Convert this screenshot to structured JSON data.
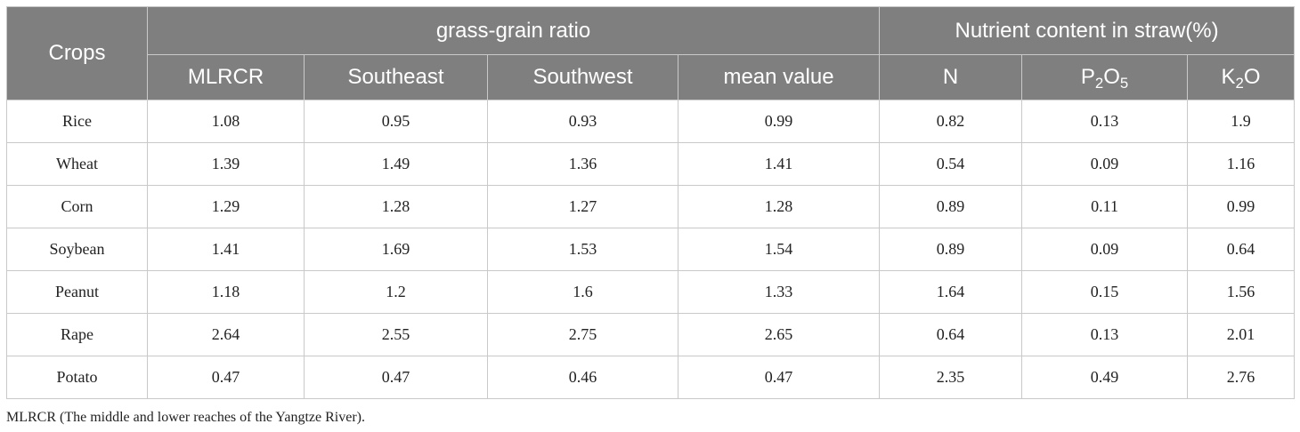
{
  "header": {
    "crops": "Crops",
    "group_ratio": "grass-grain ratio",
    "group_nutrient": "Nutrient content in straw(%)",
    "cols": [
      "MLRCR",
      "Southeast",
      "Southwest",
      "mean value",
      "N"
    ],
    "p2o5": {
      "a": "P",
      "a_sub": "2",
      "b": "O",
      "b_sub": "5"
    },
    "k2o": {
      "a": "K",
      "a_sub": "2",
      "b": "O"
    }
  },
  "rows": [
    [
      "Rice",
      "1.08",
      "0.95",
      "0.93",
      "0.99",
      "0.82",
      "0.13",
      "1.9"
    ],
    [
      "Wheat",
      "1.39",
      "1.49",
      "1.36",
      "1.41",
      "0.54",
      "0.09",
      "1.16"
    ],
    [
      "Corn",
      "1.29",
      "1.28",
      "1.27",
      "1.28",
      "0.89",
      "0.11",
      "0.99"
    ],
    [
      "Soybean",
      "1.41",
      "1.69",
      "1.53",
      "1.54",
      "0.89",
      "0.09",
      "0.64"
    ],
    [
      "Peanut",
      "1.18",
      "1.2",
      "1.6",
      "1.33",
      "1.64",
      "0.15",
      "1.56"
    ],
    [
      "Rape",
      "2.64",
      "2.55",
      "2.75",
      "2.65",
      "0.64",
      "0.13",
      "2.01"
    ],
    [
      "Potato",
      "0.47",
      "0.47",
      "0.46",
      "0.47",
      "2.35",
      "0.49",
      "2.76"
    ]
  ],
  "footnote": "MLRCR (The middle and lower reaches of the Yangtze River)."
}
